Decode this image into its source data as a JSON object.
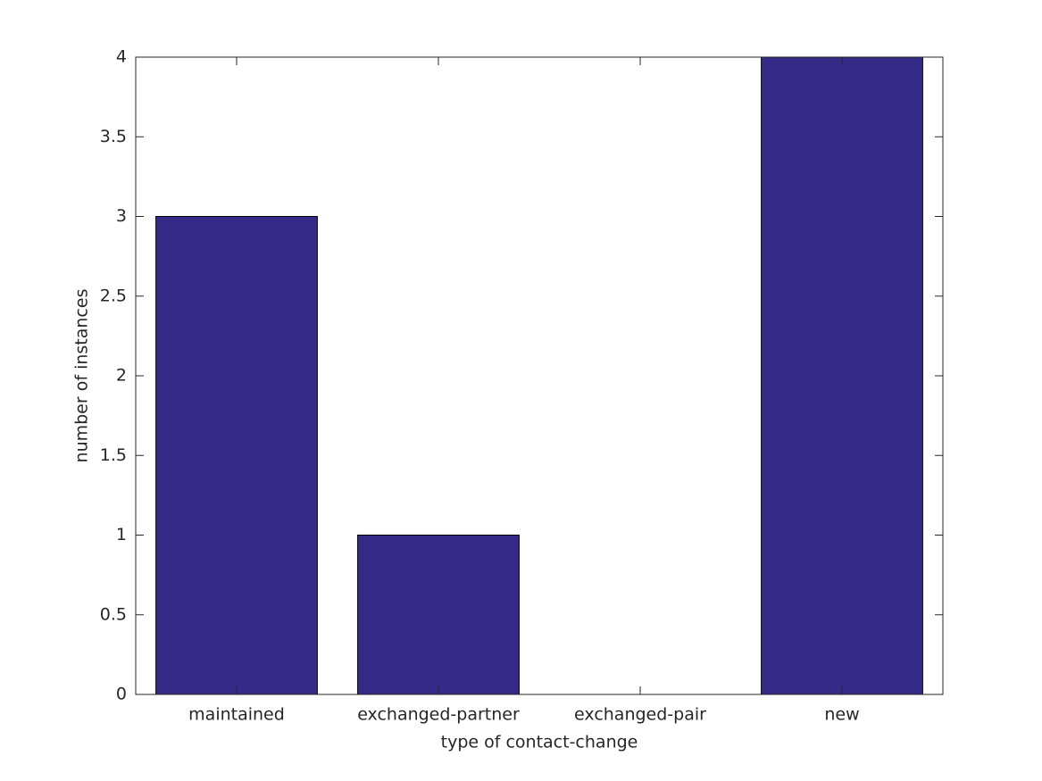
{
  "chart_data": {
    "type": "bar",
    "categories": [
      "maintained",
      "exchanged-partner",
      "exchanged-pair",
      "new"
    ],
    "values": [
      3,
      1,
      0,
      4
    ],
    "color": "#352a87",
    "xlabel": "type of contact-change",
    "ylabel": "number of instances",
    "ylim": [
      0,
      4
    ],
    "yticks": [
      0,
      0.5,
      1,
      1.5,
      2,
      2.5,
      3,
      3.5,
      4
    ]
  }
}
